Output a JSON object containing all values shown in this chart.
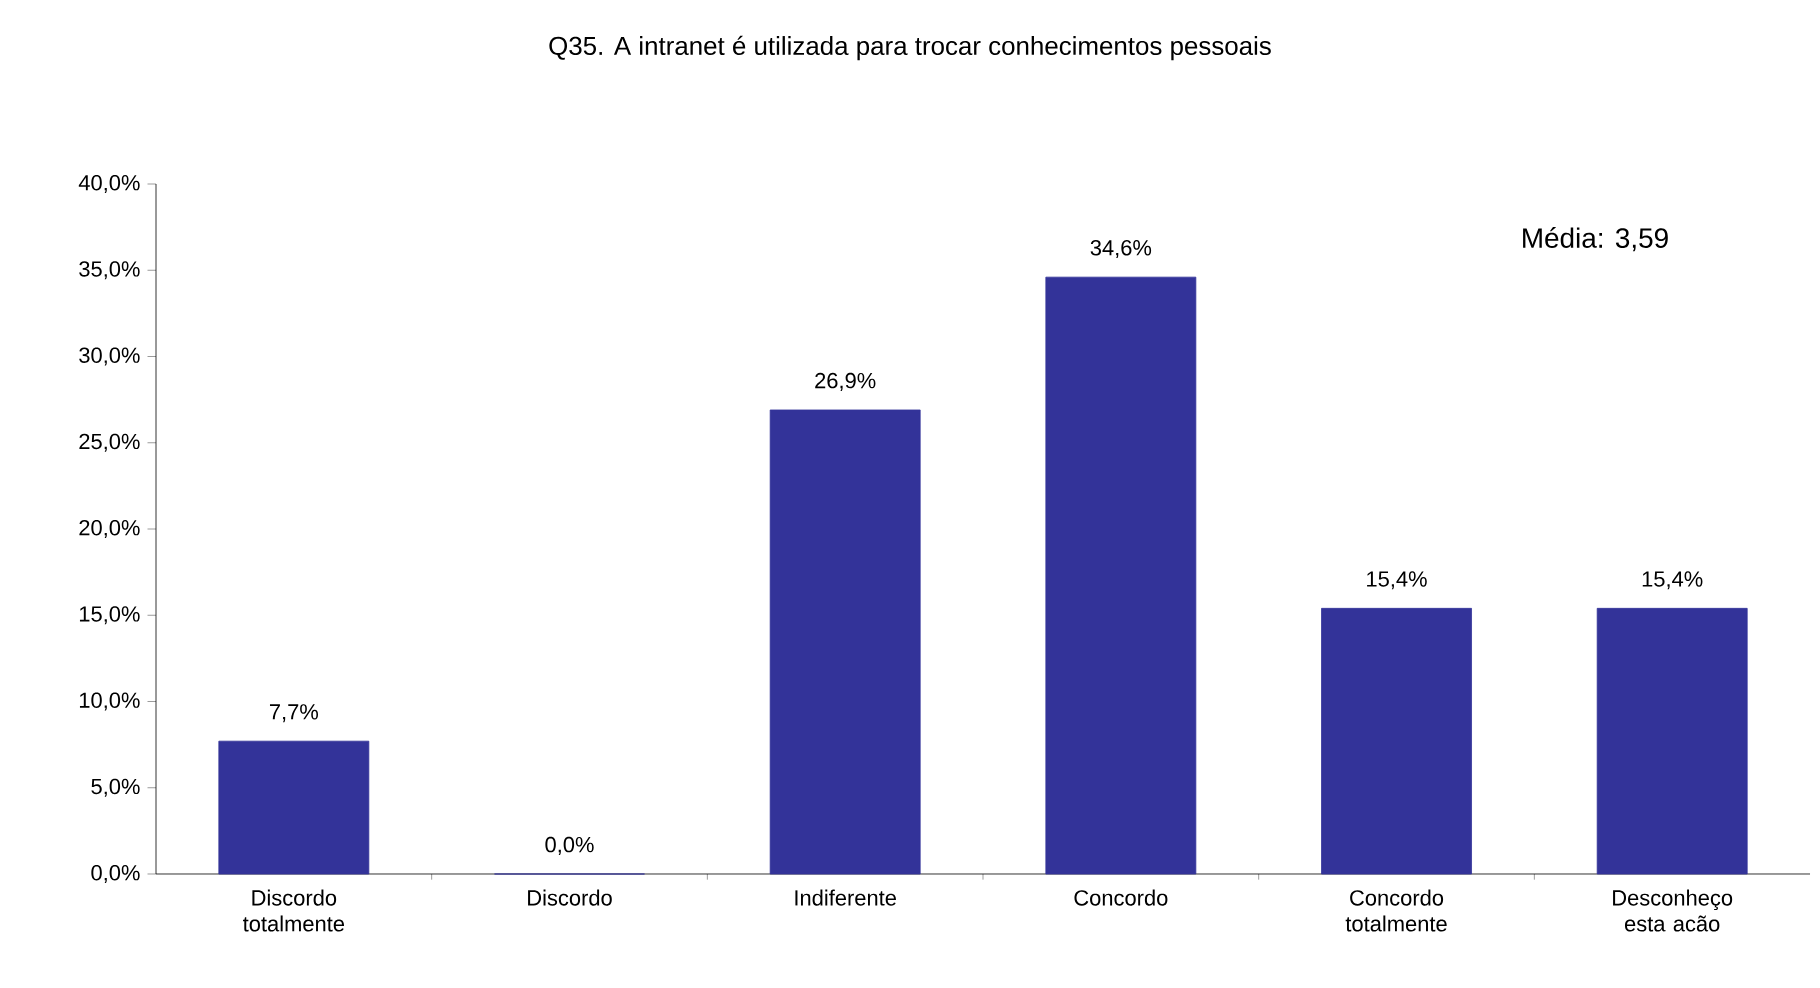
{
  "chart_data": {
    "type": "bar",
    "title": "Q35. A intranet é utilizada para trocar conhecimentos pessoais",
    "categories": [
      "Discordo totalmente",
      "Discordo",
      "Indiferente",
      "Concordo",
      "Concordo totalmente",
      "Desconheço esta acão"
    ],
    "values": [
      7.7,
      0,
      26.9,
      34.6,
      15.4,
      15.4
    ],
    "value_labels": [
      "7,7%",
      "0,0%",
      "26,9%",
      "34,6%",
      "15,4%",
      "15,4%"
    ],
    "color": "#333399",
    "ylim": [
      0,
      40
    ],
    "yticks": [
      {
        "value": 0,
        "label": "0,0%"
      },
      {
        "value": 5,
        "label": "5,0%"
      },
      {
        "value": 10,
        "label": "10,0%"
      },
      {
        "value": 15,
        "label": "15,0%"
      },
      {
        "value": 20,
        "label": "20,0%"
      },
      {
        "value": 25,
        "label": "25,0%"
      },
      {
        "value": 30,
        "label": "30,0%"
      },
      {
        "value": 35,
        "label": "35,0%"
      },
      {
        "value": 40,
        "label": "40,0%"
      }
    ],
    "annotations": [
      "Média: 3,59"
    ],
    "grid": false
  }
}
